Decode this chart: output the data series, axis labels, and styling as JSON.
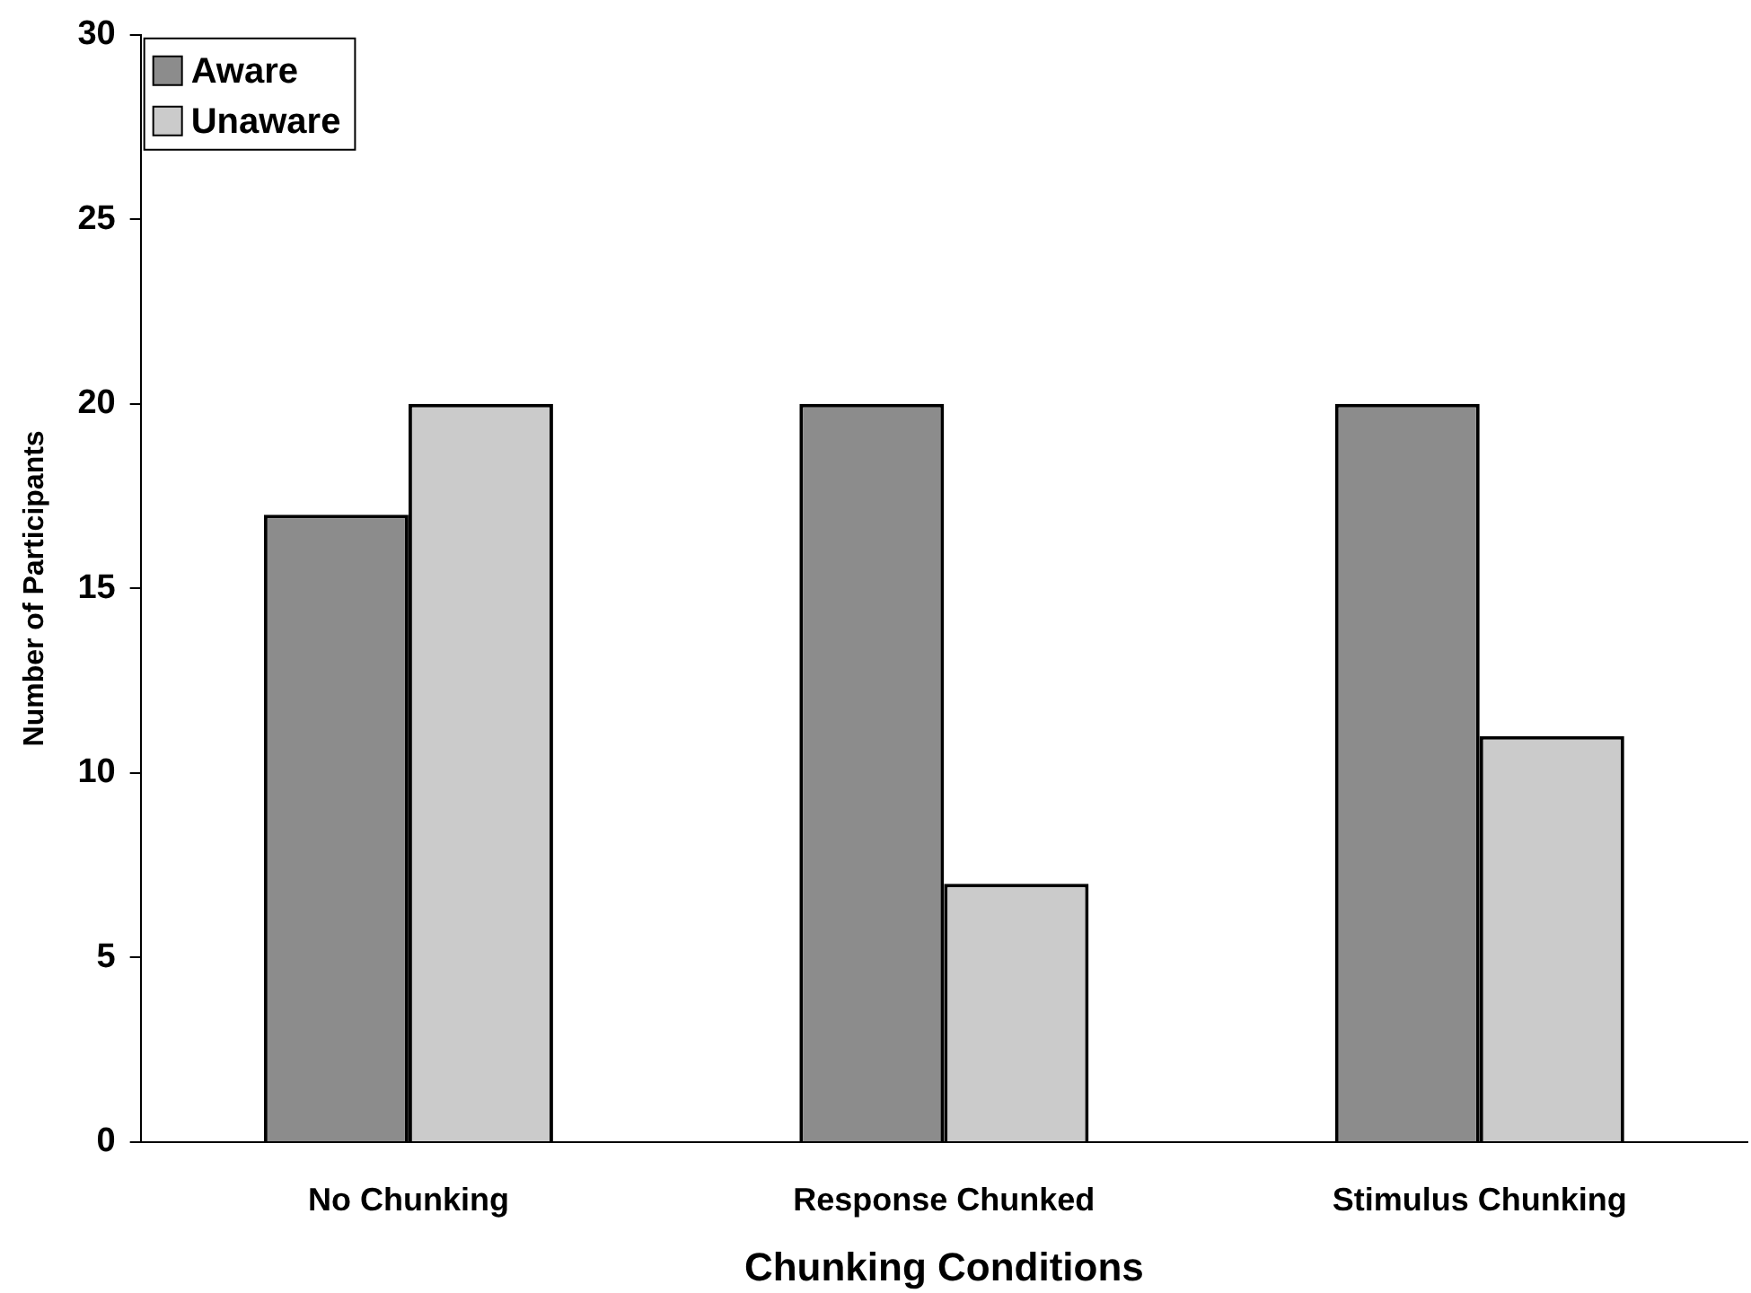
{
  "chart_data": {
    "type": "bar",
    "xlabel": "Chunking Conditions",
    "ylabel": "Number of Participants",
    "categories": [
      "No Chunking",
      "Response Chunked",
      "Stimulus Chunking"
    ],
    "series": [
      {
        "name": "Aware",
        "color": "#8c8c8c",
        "values": [
          17,
          20,
          20
        ]
      },
      {
        "name": "Unaware",
        "color": "#cbcbcb",
        "values": [
          20,
          7,
          11
        ]
      }
    ],
    "ylim": [
      0,
      30
    ],
    "yticks": [
      0,
      5,
      10,
      15,
      20,
      25,
      30
    ],
    "legend": "top left"
  }
}
